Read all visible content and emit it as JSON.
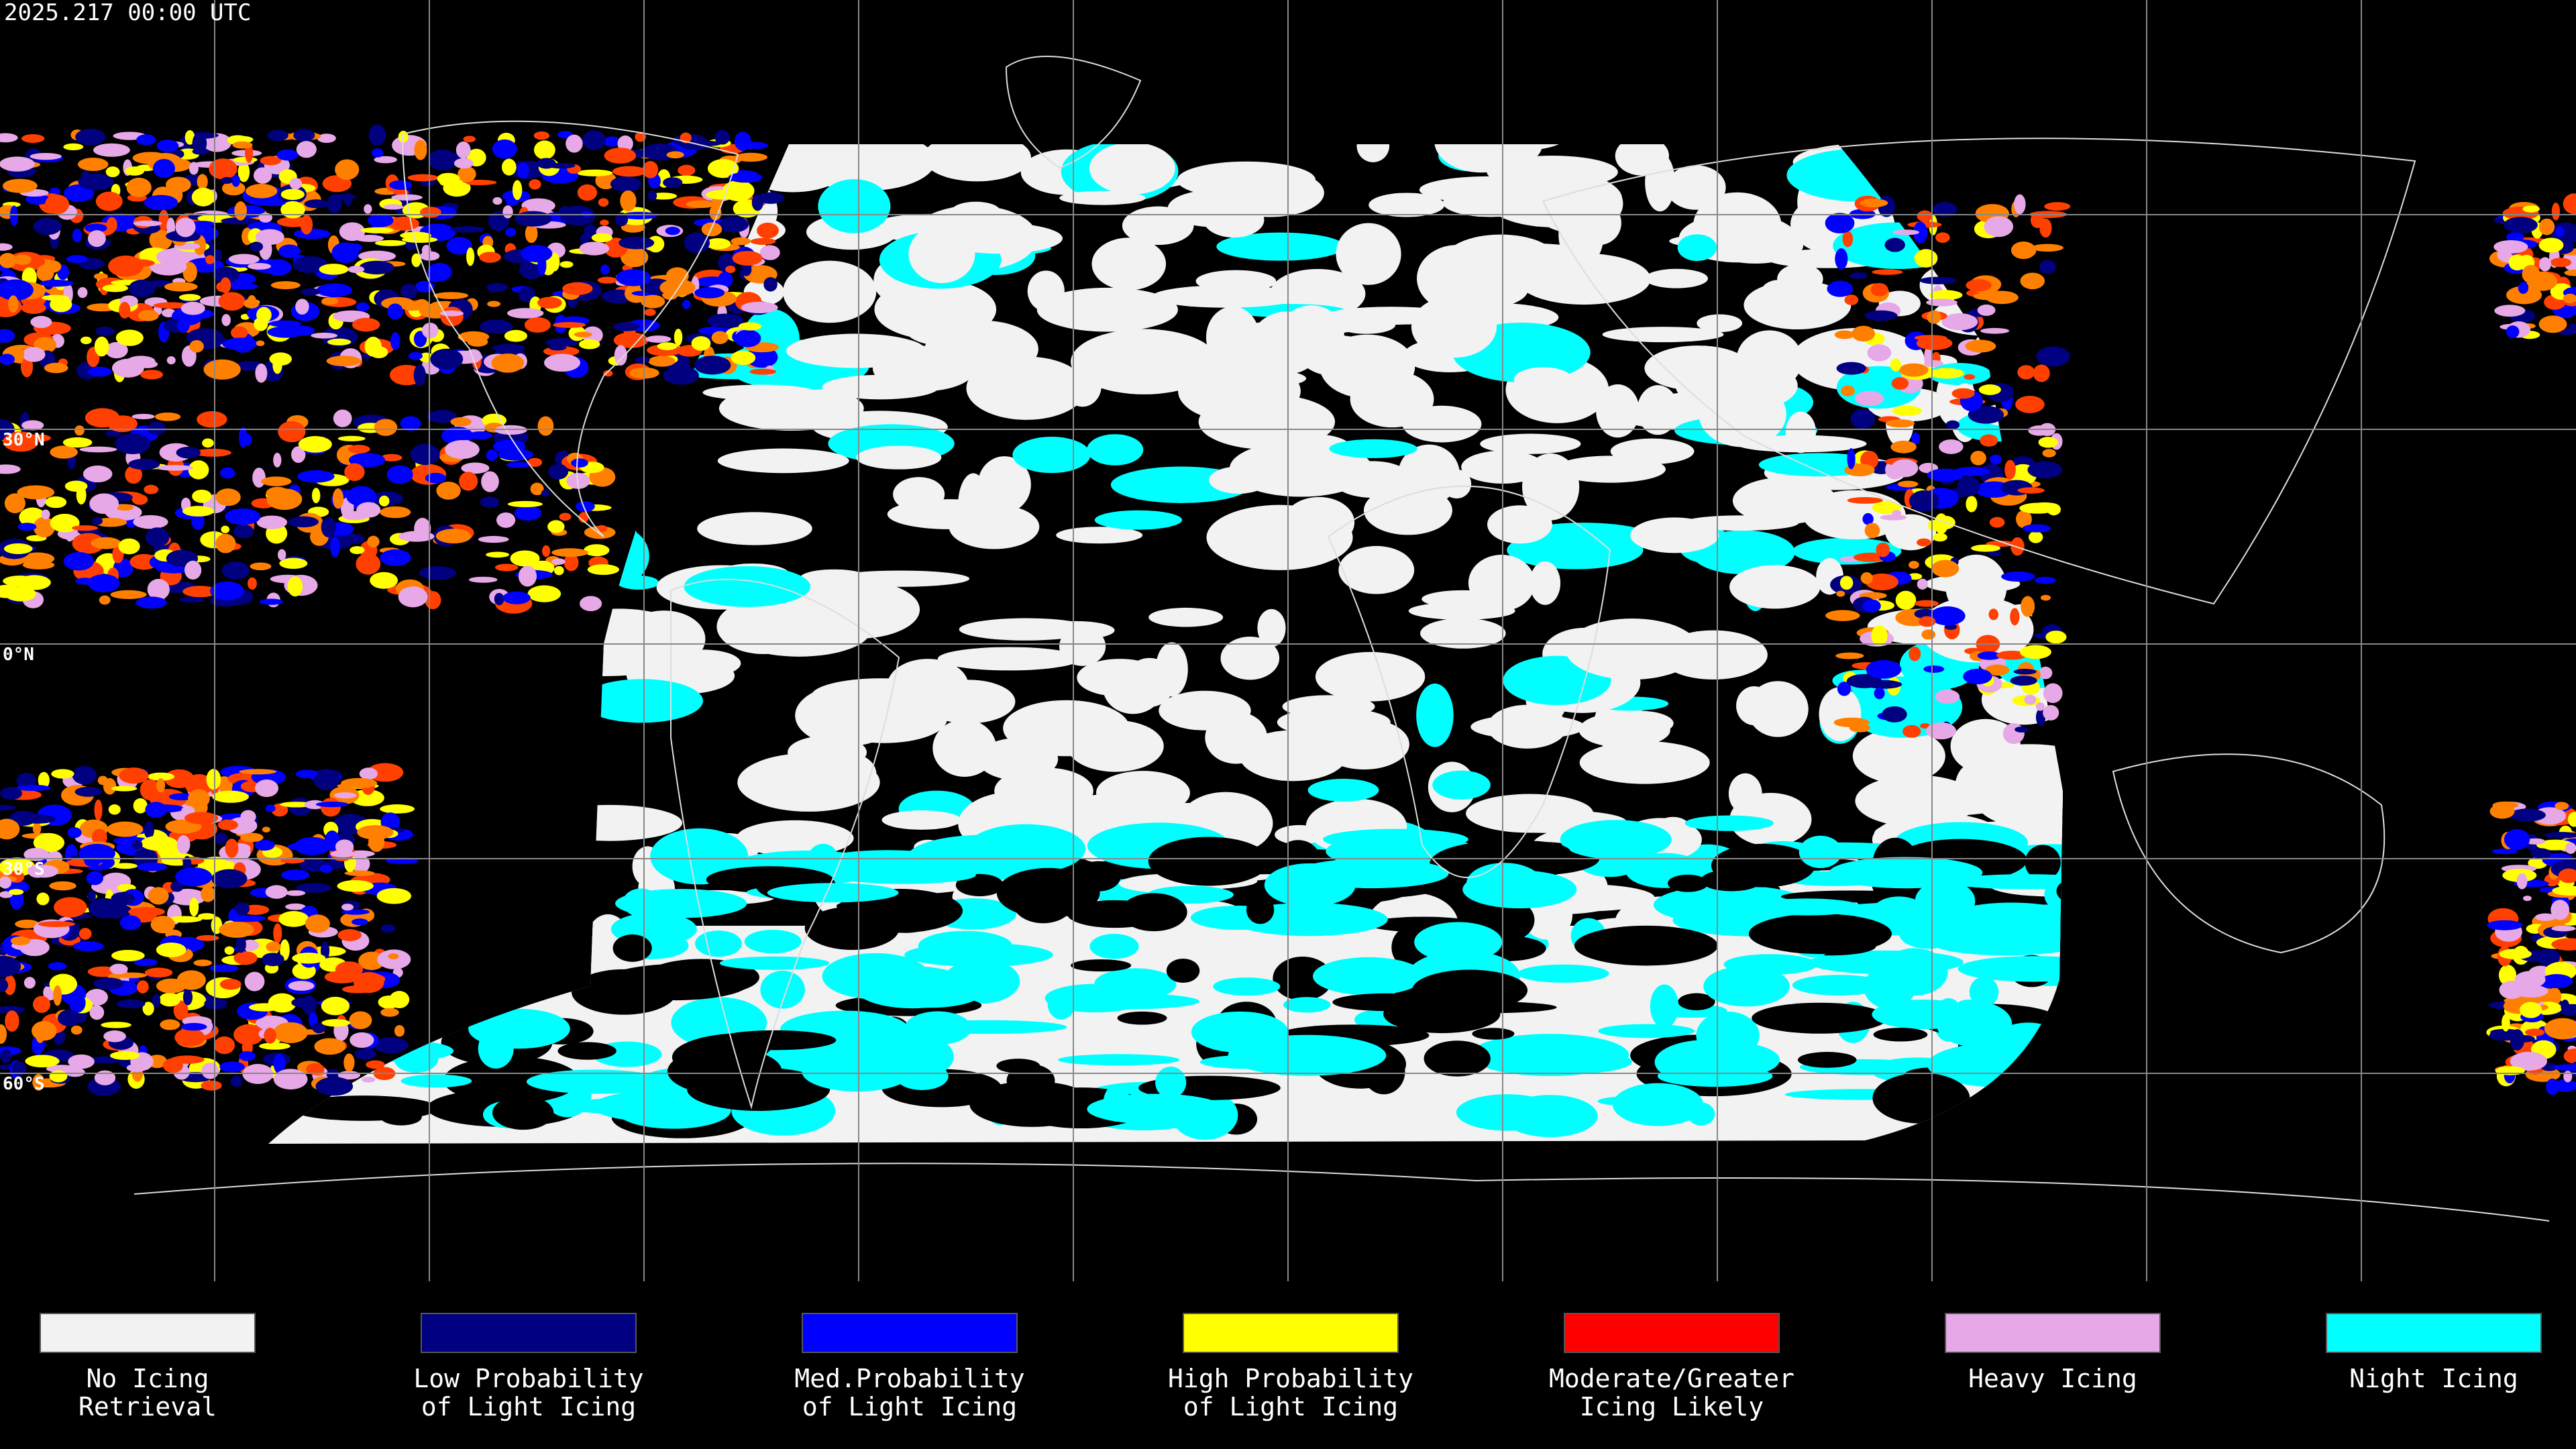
{
  "header": {
    "title": "2025.217 00:00 UTC"
  },
  "map": {
    "latitude_labels": [
      "30°N",
      "0°N",
      "30°S",
      "60°S"
    ]
  },
  "legend": {
    "items": [
      {
        "color": "#f2f2f2",
        "label": [
          "No Icing",
          "Retrieval"
        ]
      },
      {
        "color": "#000080",
        "label": [
          "Low Probability",
          "of Light Icing"
        ]
      },
      {
        "color": "#0000ff",
        "label": [
          "Med.Probability",
          "of Light Icing"
        ]
      },
      {
        "color": "#ffff00",
        "label": [
          "High Probability",
          "of Light Icing"
        ]
      },
      {
        "color": "#ff0000",
        "label": [
          "Moderate/Greater",
          "Icing Likely"
        ]
      },
      {
        "color": "#e6a8e6",
        "label": [
          "Heavy Icing"
        ]
      },
      {
        "color": "#00ffff",
        "label": [
          "Night Icing"
        ]
      }
    ]
  }
}
